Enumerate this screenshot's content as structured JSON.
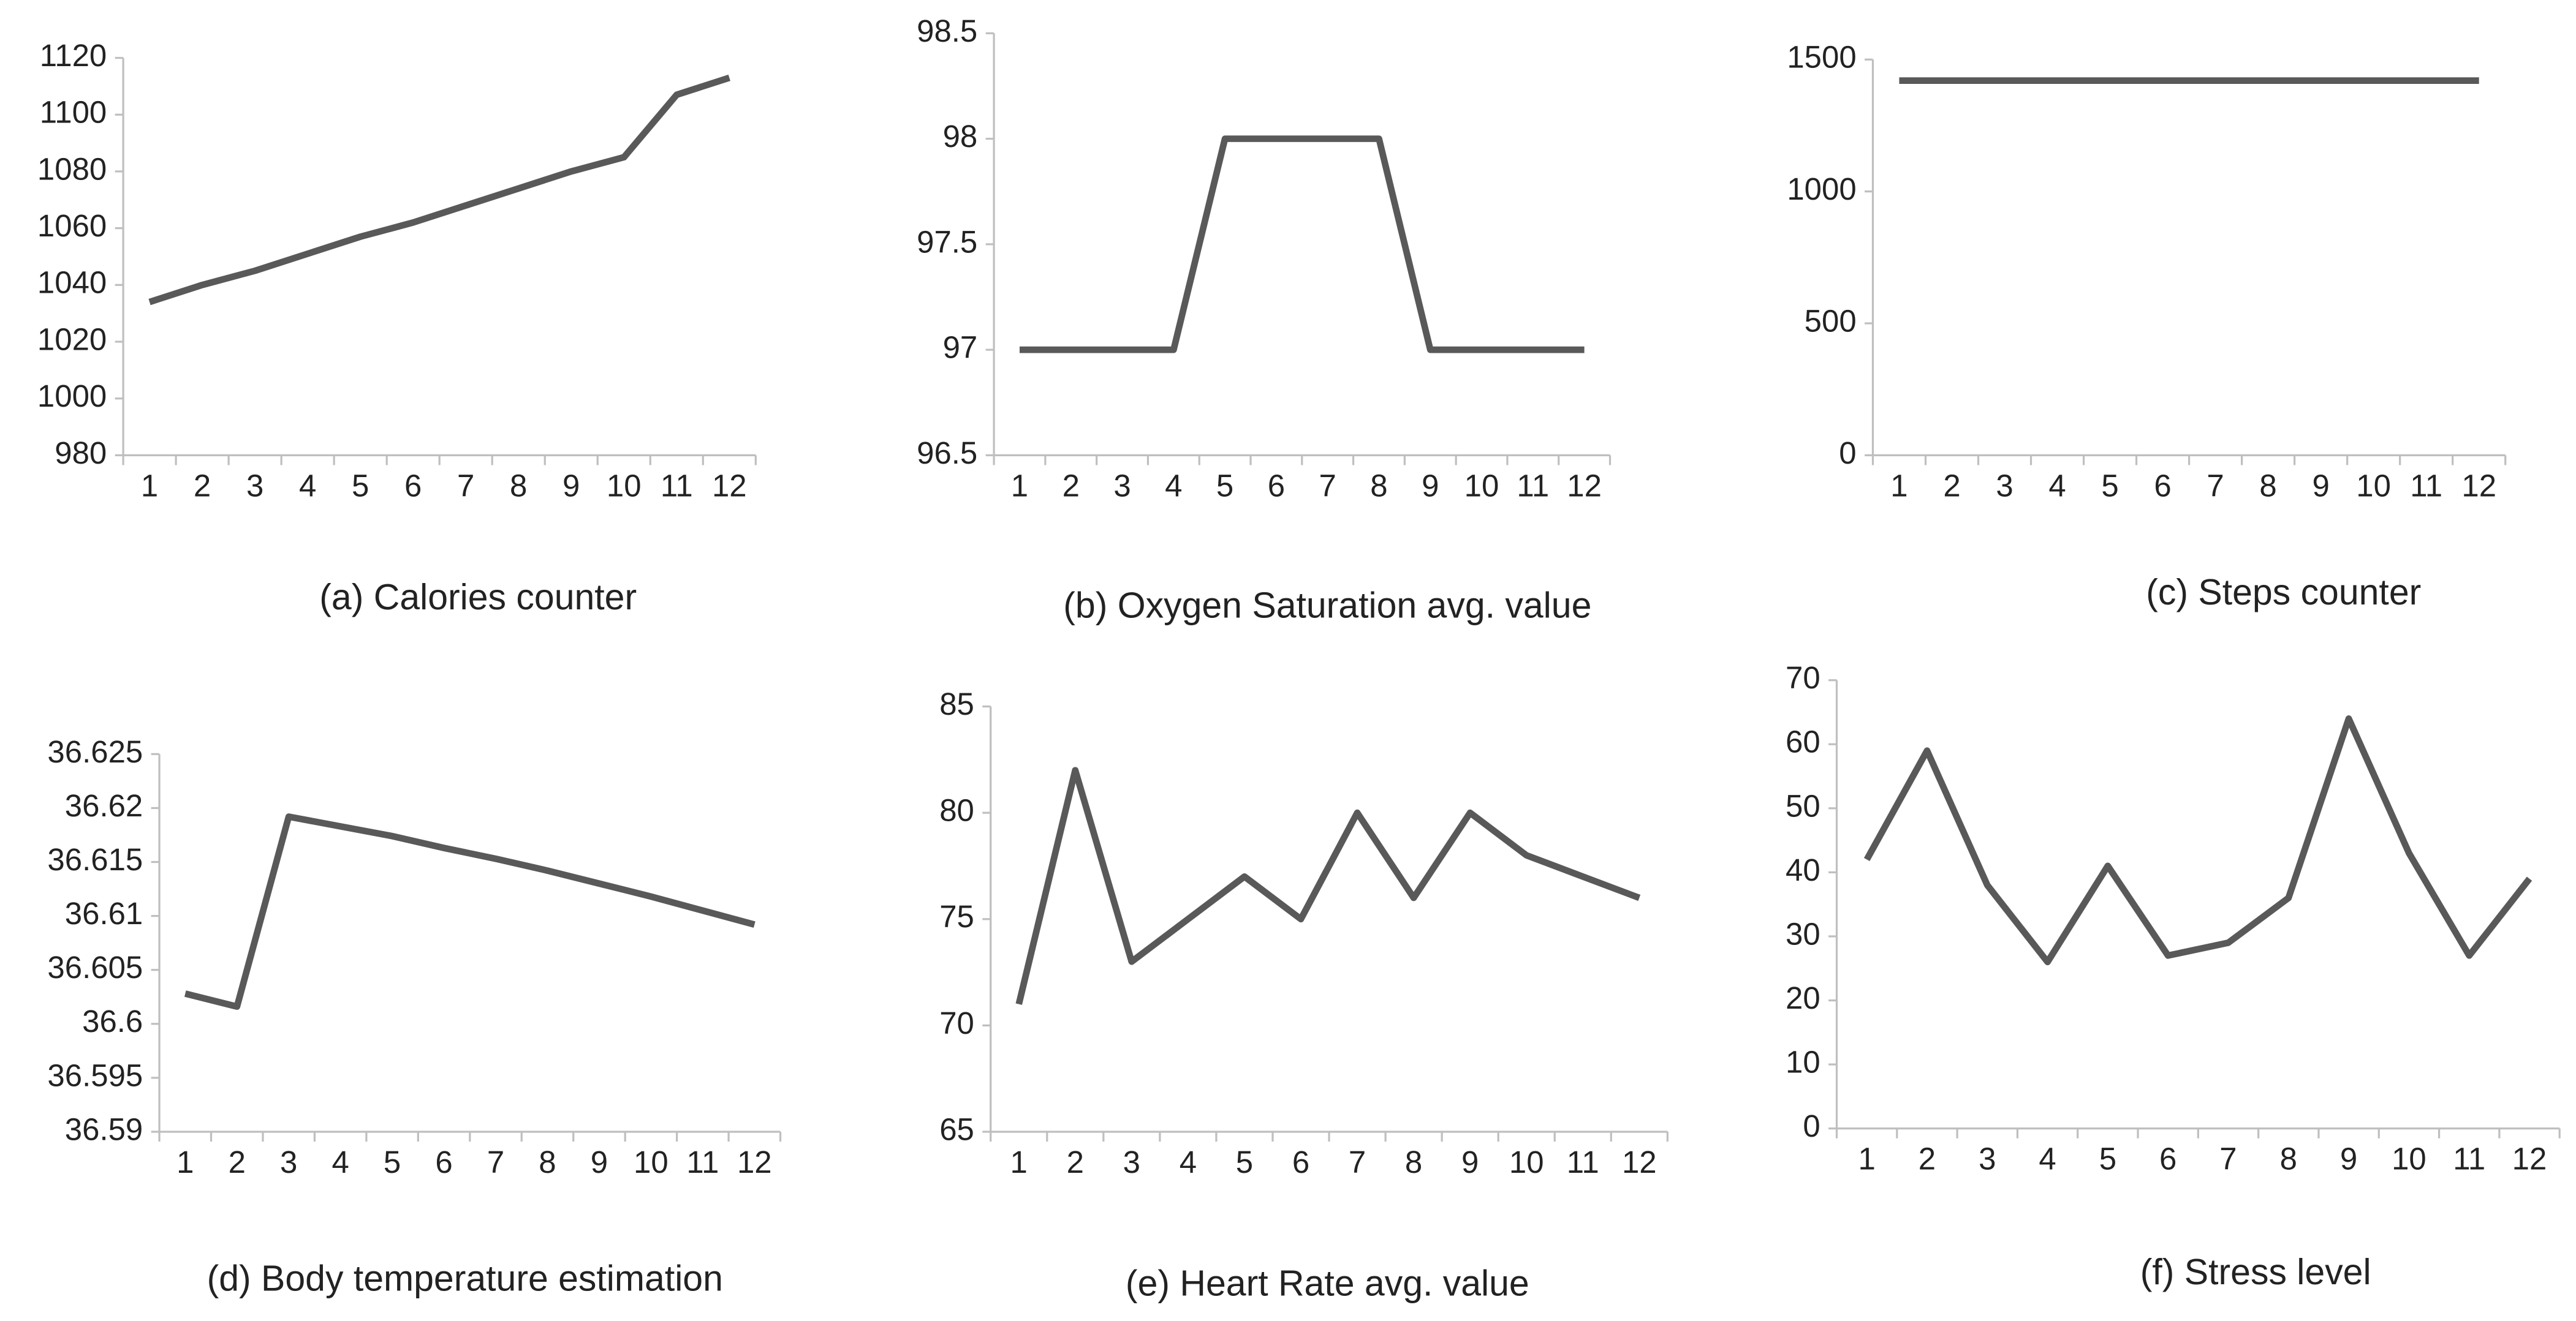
{
  "chart_data": [
    {
      "type": "line",
      "title": "(a) Calories counter",
      "categories": [
        "1",
        "2",
        "3",
        "4",
        "5",
        "6",
        "7",
        "8",
        "9",
        "10",
        "11",
        "12"
      ],
      "values": [
        1034,
        1040,
        1045,
        1051,
        1057,
        1062,
        1068,
        1074,
        1080,
        1085,
        1107,
        1113
      ],
      "color": "#595959",
      "ylim": [
        980,
        1120
      ],
      "yticks": [
        980,
        1000,
        1020,
        1040,
        1060,
        1080,
        1100,
        1120
      ],
      "grid": false
    },
    {
      "type": "line",
      "title": "(b) Oxygen Saturation avg. value",
      "categories": [
        "1",
        "2",
        "3",
        "4",
        "5",
        "6",
        "7",
        "8",
        "9",
        "10",
        "11",
        "12"
      ],
      "values": [
        97,
        97,
        97,
        97,
        98,
        98,
        98,
        98,
        97,
        97,
        97,
        97
      ],
      "color": "#595959",
      "ylim": [
        96.5,
        98.5
      ],
      "yticks": [
        96.5,
        97,
        97.5,
        98,
        98.5
      ],
      "grid": false
    },
    {
      "type": "line",
      "title": "(c) Steps counter",
      "categories": [
        "1",
        "2",
        "3",
        "4",
        "5",
        "6",
        "7",
        "8",
        "9",
        "10",
        "11",
        "12"
      ],
      "values": [
        1420,
        1420,
        1420,
        1420,
        1420,
        1420,
        1420,
        1420,
        1420,
        1420,
        1420,
        1420
      ],
      "color": "#595959",
      "ylim": [
        0,
        1500
      ],
      "yticks": [
        0,
        500,
        1000,
        1500
      ],
      "grid": false
    },
    {
      "type": "line",
      "title": "(d) Body temperature estimation",
      "categories": [
        "1",
        "2",
        "3",
        "4",
        "5",
        "6",
        "7",
        "8",
        "9",
        "10",
        "11",
        "12"
      ],
      "values": [
        36.6028,
        36.6016,
        36.6192,
        36.6183,
        36.6174,
        36.6163,
        36.6153,
        36.6142,
        36.613,
        36.6118,
        36.6105,
        36.6092
      ],
      "color": "#595959",
      "ylim": [
        36.59,
        36.625
      ],
      "yticks": [
        36.59,
        36.595,
        36.6,
        36.605,
        36.61,
        36.615,
        36.62,
        36.625
      ],
      "grid": false
    },
    {
      "type": "line",
      "title": "(e) Heart Rate avg. value",
      "categories": [
        "1",
        "2",
        "3",
        "4",
        "5",
        "6",
        "7",
        "8",
        "9",
        "10",
        "11",
        "12"
      ],
      "values": [
        71,
        82,
        73,
        75,
        77,
        75,
        80,
        76,
        80,
        78,
        77,
        76
      ],
      "color": "#595959",
      "ylim": [
        65,
        85
      ],
      "yticks": [
        65,
        70,
        75,
        80,
        85
      ],
      "grid": false
    },
    {
      "type": "line",
      "title": "(f) Stress level",
      "categories": [
        "1",
        "2",
        "3",
        "4",
        "5",
        "6",
        "7",
        "8",
        "9",
        "10",
        "11",
        "12"
      ],
      "values": [
        42,
        59,
        38,
        26,
        41,
        27,
        29,
        36,
        64,
        43,
        27,
        39
      ],
      "color": "#595959",
      "ylim": [
        0,
        70
      ],
      "yticks": [
        0,
        10,
        20,
        30,
        40,
        50,
        60,
        70
      ],
      "grid": false
    }
  ]
}
